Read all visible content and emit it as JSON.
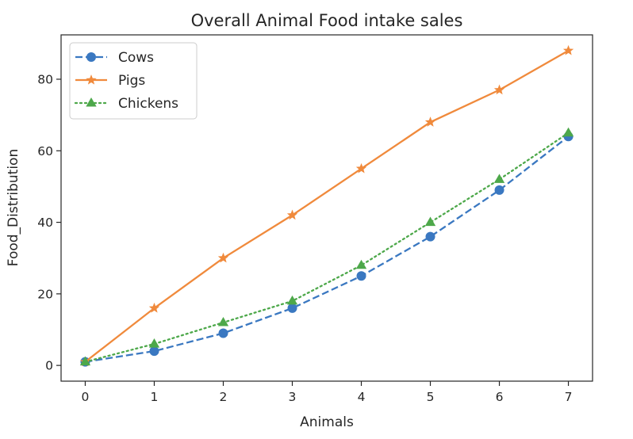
{
  "chart_data": {
    "type": "line",
    "title": "Overall Animal Food intake sales",
    "xlabel": "Animals",
    "ylabel": "Food_Distribution",
    "x": [
      0,
      1,
      2,
      3,
      4,
      5,
      6,
      7
    ],
    "xlim": [
      -0.35,
      7.35
    ],
    "ylim": [
      -4.4,
      92.4
    ],
    "xticks": [
      0,
      1,
      2,
      3,
      4,
      5,
      6,
      7
    ],
    "yticks": [
      0,
      20,
      40,
      60,
      80
    ],
    "grid": false,
    "legend_position": "top-left",
    "series": [
      {
        "name": "Cows",
        "values": [
          1,
          4,
          9,
          16,
          25,
          36,
          49,
          64
        ],
        "color": "#3a78c1",
        "line_style": "dashed",
        "marker": "circle"
      },
      {
        "name": "Pigs",
        "values": [
          1,
          16,
          30,
          42,
          55,
          68,
          77,
          88
        ],
        "color": "#f08a3c",
        "line_style": "solid",
        "marker": "star"
      },
      {
        "name": "Chickens",
        "values": [
          1,
          6,
          12,
          18,
          28,
          40,
          52,
          65
        ],
        "color": "#4da84a",
        "line_style": "dotted",
        "marker": "triangle"
      }
    ]
  }
}
